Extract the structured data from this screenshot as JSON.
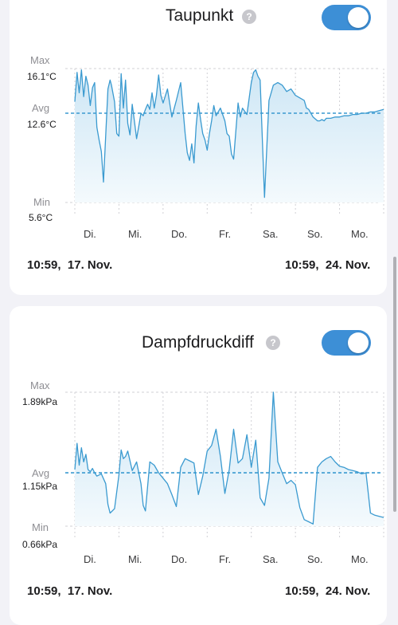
{
  "colors": {
    "line": "#3a9ad0",
    "fill_top": "#cde6f5",
    "fill_bottom": "#f4fafd",
    "grid": "#d0d0d5",
    "toggle": "#3d8fd6"
  },
  "cards": [
    {
      "title": "Taupunkt",
      "help_icon": "?",
      "toggle_on": true,
      "max_label": "Max",
      "max_value": "16.1°C",
      "avg_label": "Avg",
      "avg_value": "12.6°C",
      "min_label": "Min",
      "min_value": "5.6°C",
      "days": [
        "Di.",
        "Mi.",
        "Do.",
        "Fr.",
        "Sa.",
        "So.",
        "Mo."
      ],
      "start_time": "10:59,",
      "start_date": "17. Nov.",
      "end_time": "10:59,",
      "end_date": "24. Nov."
    },
    {
      "title": "Dampfdruckdiff",
      "help_icon": "?",
      "toggle_on": true,
      "max_label": "Max",
      "max_value": "1.89kPa",
      "avg_label": "Avg",
      "avg_value": "1.15kPa",
      "min_label": "Min",
      "min_value": "0.66kPa",
      "days": [
        "Di.",
        "Mi.",
        "Do.",
        "Fr.",
        "Sa.",
        "So.",
        "Mo."
      ],
      "start_time": "10:59,",
      "start_date": "17. Nov.",
      "end_time": "10:59,",
      "end_date": "24. Nov."
    }
  ],
  "chart_data": [
    {
      "type": "area",
      "ylim": [
        5.6,
        16.1
      ],
      "avg": 12.6,
      "x_unit": "days since 17. Nov. 10:59",
      "x": [
        0,
        0.05,
        0.1,
        0.15,
        0.2,
        0.25,
        0.3,
        0.35,
        0.4,
        0.45,
        0.5,
        0.55,
        0.6,
        0.65,
        0.75,
        0.8,
        0.83,
        0.9,
        0.95,
        1.0,
        1.05,
        1.1,
        1.15,
        1.2,
        1.25,
        1.3,
        1.35,
        1.4,
        1.45,
        1.5,
        1.55,
        1.6,
        1.65,
        1.7,
        1.75,
        1.8,
        1.85,
        1.9,
        1.95,
        2.0,
        2.1,
        2.2,
        2.3,
        2.4,
        2.5,
        2.55,
        2.6,
        2.65,
        2.7,
        2.75,
        2.8,
        2.85,
        2.9,
        2.95,
        3.0,
        3.05,
        3.1,
        3.15,
        3.2,
        3.3,
        3.4,
        3.45,
        3.5,
        3.55,
        3.6,
        3.65,
        3.7,
        3.75,
        3.8,
        3.9,
        4.0,
        4.05,
        4.1,
        4.15,
        4.2,
        4.3,
        4.4,
        4.5,
        4.6,
        4.7,
        4.8,
        4.9,
        5.0,
        5.1,
        5.2,
        5.25,
        5.3,
        5.4,
        5.5,
        5.55,
        5.6,
        5.65,
        5.7,
        5.8,
        5.9,
        6.0,
        6.1,
        6.2,
        6.3,
        6.4,
        6.5,
        6.6,
        6.7,
        6.8,
        6.9,
        7.0
      ],
      "y": [
        13.5,
        15.8,
        14.2,
        16.0,
        13.9,
        15.5,
        14.8,
        13.2,
        14.6,
        15.0,
        11.5,
        10.5,
        9.6,
        7.2,
        14.5,
        15.2,
        14.8,
        13.5,
        11.0,
        10.8,
        15.7,
        13.0,
        15.2,
        11.8,
        10.9,
        13.3,
        12.0,
        10.6,
        11.6,
        12.6,
        12.4,
        12.9,
        13.3,
        12.9,
        14.2,
        13.0,
        14.0,
        15.6,
        14.0,
        13.4,
        14.5,
        12.3,
        13.6,
        15.0,
        11.0,
        9.5,
        8.9,
        10.2,
        8.7,
        11.6,
        13.4,
        12.1,
        11.0,
        10.5,
        9.7,
        11.0,
        12.0,
        13.2,
        12.4,
        13.0,
        12.0,
        11.0,
        10.8,
        9.4,
        9.0,
        11.2,
        13.4,
        12.3,
        13.0,
        12.5,
        15.0,
        15.8,
        16.0,
        15.5,
        15.2,
        6.0,
        13.6,
        14.8,
        15.0,
        14.8,
        14.3,
        14.5,
        14.0,
        13.8,
        13.6,
        13.0,
        12.9,
        12.3,
        12.0,
        12.0,
        12.1,
        12.0,
        12.2,
        12.2,
        12.3,
        12.3,
        12.4,
        12.4,
        12.5,
        12.5,
        12.6,
        12.6,
        12.7,
        12.7,
        12.8,
        12.9
      ]
    },
    {
      "type": "area",
      "ylim": [
        0.66,
        1.89
      ],
      "avg": 1.15,
      "x_unit": "days since 17. Nov. 10:59",
      "x": [
        0,
        0.05,
        0.1,
        0.15,
        0.2,
        0.25,
        0.3,
        0.35,
        0.4,
        0.45,
        0.5,
        0.6,
        0.7,
        0.75,
        0.8,
        0.85,
        0.9,
        1.0,
        1.05,
        1.1,
        1.15,
        1.2,
        1.3,
        1.4,
        1.5,
        1.55,
        1.6,
        1.7,
        1.8,
        1.9,
        2.0,
        2.1,
        2.2,
        2.3,
        2.4,
        2.5,
        2.6,
        2.7,
        2.8,
        2.9,
        3.0,
        3.1,
        3.2,
        3.3,
        3.4,
        3.5,
        3.6,
        3.7,
        3.8,
        3.9,
        4.0,
        4.1,
        4.2,
        4.3,
        4.4,
        4.5,
        4.6,
        4.7,
        4.8,
        4.9,
        5.0,
        5.1,
        5.2,
        5.3,
        5.4,
        5.5,
        5.6,
        5.7,
        5.8,
        5.9,
        6.0,
        6.1,
        6.2,
        6.3,
        6.4,
        6.5,
        6.6,
        6.7,
        6.8,
        6.9,
        7.0
      ],
      "y": [
        1.18,
        1.42,
        1.22,
        1.38,
        1.25,
        1.32,
        1.18,
        1.16,
        1.19,
        1.15,
        1.12,
        1.14,
        1.05,
        0.86,
        0.78,
        0.8,
        0.82,
        1.13,
        1.36,
        1.28,
        1.3,
        1.35,
        1.17,
        1.25,
        1.05,
        0.85,
        0.8,
        1.25,
        1.22,
        1.15,
        1.1,
        1.05,
        0.95,
        0.84,
        1.2,
        1.28,
        1.26,
        1.24,
        0.95,
        1.12,
        1.35,
        1.4,
        1.55,
        1.3,
        0.96,
        1.18,
        1.55,
        1.24,
        1.28,
        1.5,
        1.2,
        1.45,
        0.92,
        0.85,
        1.1,
        1.89,
        1.25,
        1.15,
        1.05,
        1.08,
        1.04,
        0.83,
        0.72,
        0.7,
        0.68,
        1.2,
        1.25,
        1.28,
        1.3,
        1.25,
        1.21,
        1.2,
        1.18,
        1.17,
        1.16,
        1.14,
        1.15,
        0.78,
        0.76,
        0.75,
        0.74
      ]
    }
  ]
}
